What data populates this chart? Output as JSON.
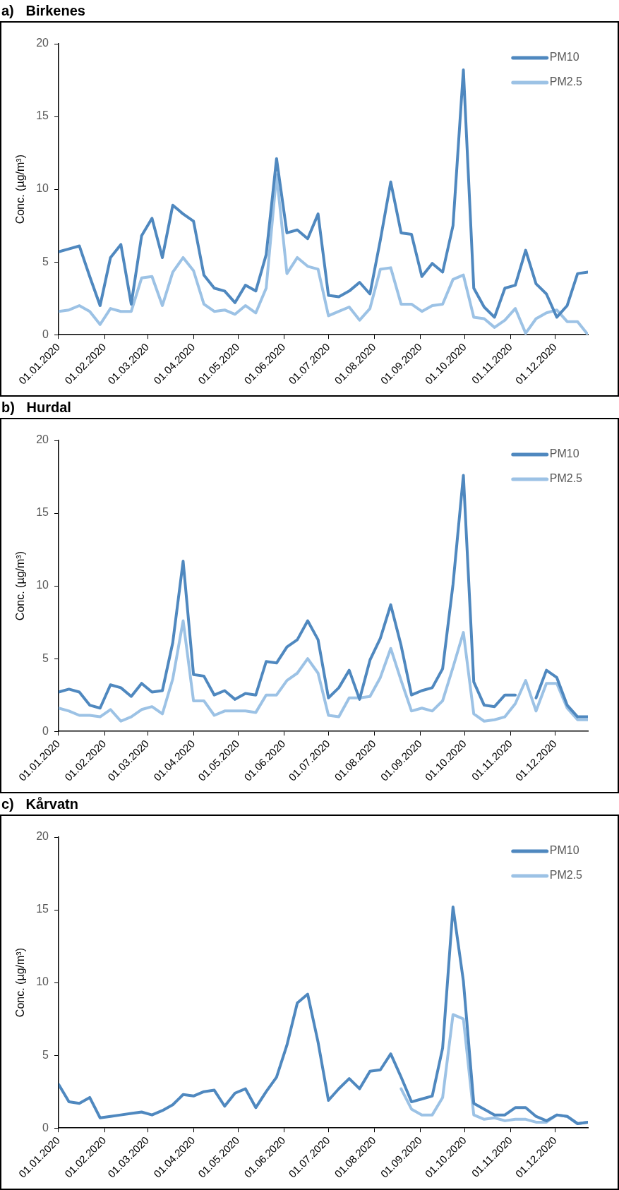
{
  "chart_data": [
    {
      "type": "line",
      "title": "a)   Birkenes",
      "ylabel": "Conc. (µg/m³)",
      "legend": "top right",
      "marker": "none",
      "line_style": "solid",
      "grid": false,
      "x": [
        "2020-01-01",
        "2020-01-08",
        "2020-01-15",
        "2020-01-22",
        "2020-01-29",
        "2020-02-05",
        "2020-02-12",
        "2020-02-19",
        "2020-02-26",
        "2020-03-04",
        "2020-03-11",
        "2020-03-18",
        "2020-03-25",
        "2020-04-01",
        "2020-04-08",
        "2020-04-15",
        "2020-04-22",
        "2020-04-29",
        "2020-05-06",
        "2020-05-13",
        "2020-05-20",
        "2020-05-27",
        "2020-06-03",
        "2020-06-10",
        "2020-06-17",
        "2020-06-24",
        "2020-07-01",
        "2020-07-08",
        "2020-07-15",
        "2020-07-22",
        "2020-07-29",
        "2020-08-05",
        "2020-08-12",
        "2020-08-19",
        "2020-08-26",
        "2020-09-02",
        "2020-09-09",
        "2020-09-16",
        "2020-09-23",
        "2020-09-30",
        "2020-10-07",
        "2020-10-14",
        "2020-10-21",
        "2020-10-28",
        "2020-11-04",
        "2020-11-11",
        "2020-11-18",
        "2020-11-25",
        "2020-12-02",
        "2020-12-09",
        "2020-12-16",
        "2020-12-23"
      ],
      "xlim": [
        "2020-01-01",
        "2020-12-23"
      ],
      "xticks": [
        {
          "value": "2020-01-01",
          "label": "01.01.2020"
        },
        {
          "value": "2020-02-01",
          "label": "01.02.2020"
        },
        {
          "value": "2020-03-01",
          "label": "01.03.2020"
        },
        {
          "value": "2020-04-01",
          "label": "01.04.2020"
        },
        {
          "value": "2020-05-01",
          "label": "01.05.2020"
        },
        {
          "value": "2020-06-01",
          "label": "01.06.2020"
        },
        {
          "value": "2020-07-01",
          "label": "01.07.2020"
        },
        {
          "value": "2020-08-01",
          "label": "01.08.2020"
        },
        {
          "value": "2020-09-01",
          "label": "01.09.2020"
        },
        {
          "value": "2020-10-01",
          "label": "01.10.2020"
        },
        {
          "value": "2020-11-01",
          "label": "01.11.2020"
        },
        {
          "value": "2020-12-01",
          "label": "01.12.2020"
        }
      ],
      "ylim": [
        0,
        20
      ],
      "yticks": [
        0,
        5,
        10,
        15,
        20
      ],
      "series": [
        {
          "name": "PM10",
          "color": "#4f88bf",
          "values": [
            5.7,
            5.9,
            6.1,
            4,
            2.0,
            5.3,
            6.2,
            2.1,
            6.8,
            8.0,
            5.3,
            8.9,
            8.3,
            7.8,
            4.1,
            3.2,
            3.0,
            2.2,
            3.4,
            3.0,
            5.5,
            12.1,
            7.0,
            7.2,
            6.6,
            8.3,
            2.7,
            2.6,
            3.0,
            3.6,
            2.8,
            6.5,
            10.5,
            7.0,
            6.9,
            4.0,
            4.9,
            4.3,
            7.5,
            18.2,
            3.2,
            1.9,
            1.2,
            3.2,
            3.4,
            5.8,
            3.5,
            2.8,
            1.2,
            2.0,
            4.2,
            4.3
          ]
        },
        {
          "name": "PM2.5",
          "color": "#9cc2e5",
          "values": [
            1.6,
            1.7,
            2.0,
            1.6,
            0.7,
            1.8,
            1.6,
            1.6,
            3.9,
            4.0,
            2.0,
            4.3,
            5.3,
            4.4,
            2.1,
            1.6,
            1.7,
            1.4,
            2.0,
            1.5,
            3.2,
            11.0,
            4.2,
            5.3,
            4.7,
            4.5,
            1.3,
            1.6,
            1.9,
            1.0,
            1.8,
            4.5,
            4.6,
            2.1,
            2.1,
            1.6,
            2.0,
            2.1,
            3.8,
            4.1,
            1.2,
            1.1,
            0.5,
            1.0,
            1.8,
            0.1,
            1.1,
            1.5,
            1.7,
            0.9,
            0.9,
            0.0
          ]
        }
      ]
    },
    {
      "type": "line",
      "title": "b)   Hurdal",
      "ylabel": "Conc. (µg/m³)",
      "legend": "top right",
      "marker": "none",
      "line_style": "solid",
      "grid": false,
      "x": [
        "2020-01-01",
        "2020-01-08",
        "2020-01-15",
        "2020-01-22",
        "2020-01-29",
        "2020-02-05",
        "2020-02-12",
        "2020-02-19",
        "2020-02-26",
        "2020-03-04",
        "2020-03-11",
        "2020-03-18",
        "2020-03-25",
        "2020-04-01",
        "2020-04-08",
        "2020-04-15",
        "2020-04-22",
        "2020-04-29",
        "2020-05-06",
        "2020-05-13",
        "2020-05-20",
        "2020-05-27",
        "2020-06-03",
        "2020-06-10",
        "2020-06-17",
        "2020-06-24",
        "2020-07-01",
        "2020-07-08",
        "2020-07-15",
        "2020-07-22",
        "2020-07-29",
        "2020-08-05",
        "2020-08-12",
        "2020-08-19",
        "2020-08-26",
        "2020-09-02",
        "2020-09-09",
        "2020-09-16",
        "2020-09-23",
        "2020-09-30",
        "2020-10-07",
        "2020-10-14",
        "2020-10-21",
        "2020-10-28",
        "2020-11-04",
        "2020-11-11",
        "2020-11-18",
        "2020-11-25",
        "2020-12-02",
        "2020-12-09",
        "2020-12-16",
        "2020-12-23"
      ],
      "xlim": [
        "2020-01-01",
        "2020-12-23"
      ],
      "xticks": [
        {
          "value": "2020-01-01",
          "label": "01.01.2020"
        },
        {
          "value": "2020-02-01",
          "label": "01.02.2020"
        },
        {
          "value": "2020-03-01",
          "label": "01.03.2020"
        },
        {
          "value": "2020-04-01",
          "label": "01.04.2020"
        },
        {
          "value": "2020-05-01",
          "label": "01.05.2020"
        },
        {
          "value": "2020-06-01",
          "label": "01.06.2020"
        },
        {
          "value": "2020-07-01",
          "label": "01.07.2020"
        },
        {
          "value": "2020-08-01",
          "label": "01.08.2020"
        },
        {
          "value": "2020-09-01",
          "label": "01.09.2020"
        },
        {
          "value": "2020-10-01",
          "label": "01.10.2020"
        },
        {
          "value": "2020-11-01",
          "label": "01.11.2020"
        },
        {
          "value": "2020-12-01",
          "label": "01.12.2020"
        }
      ],
      "ylim": [
        0,
        20
      ],
      "yticks": [
        0,
        5,
        10,
        15,
        20
      ],
      "series": [
        {
          "name": "PM10",
          "color": "#4f88bf",
          "values": [
            2.7,
            2.9,
            2.7,
            1.8,
            1.6,
            3.2,
            3.0,
            2.4,
            3.3,
            2.7,
            2.8,
            6.1,
            11.7,
            3.9,
            3.8,
            2.5,
            2.8,
            2.2,
            2.6,
            2.5,
            4.8,
            4.7,
            5.8,
            6.3,
            7.6,
            6.3,
            2.3,
            3.0,
            4.2,
            2.2,
            4.9,
            6.4,
            8.7,
            5.9,
            2.5,
            2.8,
            3.0,
            4.3,
            10.1,
            17.6,
            3.4,
            1.8,
            1.7,
            2.5,
            2.5,
            null,
            2.3,
            4.2,
            3.7,
            1.8,
            1.0,
            1.0
          ]
        },
        {
          "name": "PM2.5",
          "color": "#9cc2e5",
          "values": [
            1.6,
            1.4,
            1.1,
            1.1,
            1.0,
            1.5,
            0.7,
            1.0,
            1.5,
            1.7,
            1.2,
            3.6,
            7.6,
            2.1,
            2.1,
            1.1,
            1.4,
            1.4,
            1.4,
            1.3,
            2.5,
            2.5,
            3.5,
            4.0,
            5.0,
            4.0,
            1.1,
            1.0,
            2.3,
            2.3,
            2.4,
            3.7,
            5.7,
            3.5,
            1.4,
            1.6,
            1.4,
            2.1,
            4.4,
            6.8,
            1.2,
            0.7,
            0.8,
            1.0,
            1.9,
            3.5,
            1.4,
            3.3,
            3.3,
            1.6,
            0.8,
            0.8
          ]
        }
      ]
    },
    {
      "type": "line",
      "title": "c)   Kårvatn",
      "ylabel": "Conc. (µg/m³)",
      "legend": "top right",
      "marker": "none",
      "line_style": "solid",
      "grid": false,
      "x": [
        "2020-01-01",
        "2020-01-08",
        "2020-01-15",
        "2020-01-22",
        "2020-01-29",
        "2020-02-05",
        "2020-02-12",
        "2020-02-19",
        "2020-02-26",
        "2020-03-04",
        "2020-03-11",
        "2020-03-18",
        "2020-03-25",
        "2020-04-01",
        "2020-04-08",
        "2020-04-15",
        "2020-04-22",
        "2020-04-29",
        "2020-05-06",
        "2020-05-13",
        "2020-05-20",
        "2020-05-27",
        "2020-06-03",
        "2020-06-10",
        "2020-06-17",
        "2020-06-24",
        "2020-07-01",
        "2020-07-08",
        "2020-07-15",
        "2020-07-22",
        "2020-07-29",
        "2020-08-05",
        "2020-08-12",
        "2020-08-19",
        "2020-08-26",
        "2020-09-02",
        "2020-09-09",
        "2020-09-16",
        "2020-09-23",
        "2020-09-30",
        "2020-10-07",
        "2020-10-14",
        "2020-10-21",
        "2020-10-28",
        "2020-11-04",
        "2020-11-11",
        "2020-11-18",
        "2020-11-25",
        "2020-12-02",
        "2020-12-09",
        "2020-12-16",
        "2020-12-23"
      ],
      "xlim": [
        "2020-01-01",
        "2020-12-23"
      ],
      "xticks": [
        {
          "value": "2020-01-01",
          "label": "01.01.2020"
        },
        {
          "value": "2020-02-01",
          "label": "01.02.2020"
        },
        {
          "value": "2020-03-01",
          "label": "01.03.2020"
        },
        {
          "value": "2020-04-01",
          "label": "01.04.2020"
        },
        {
          "value": "2020-05-01",
          "label": "01.05.2020"
        },
        {
          "value": "2020-06-01",
          "label": "01.06.2020"
        },
        {
          "value": "2020-07-01",
          "label": "01.07.2020"
        },
        {
          "value": "2020-08-01",
          "label": "01.08.2020"
        },
        {
          "value": "2020-09-01",
          "label": "01.09.2020"
        },
        {
          "value": "2020-10-01",
          "label": "01.10.2020"
        },
        {
          "value": "2020-11-01",
          "label": "01.11.2020"
        },
        {
          "value": "2020-12-01",
          "label": "01.12.2020"
        }
      ],
      "ylim": [
        0,
        20
      ],
      "yticks": [
        0,
        5,
        10,
        15,
        20
      ],
      "series": [
        {
          "name": "PM10",
          "color": "#4f88bf",
          "values": [
            3.0,
            1.8,
            1.7,
            2.1,
            0.7,
            0.8,
            0.9,
            1.0,
            1.1,
            0.9,
            1.2,
            1.6,
            2.3,
            2.2,
            2.5,
            2.6,
            1.5,
            2.4,
            2.7,
            1.4,
            2.5,
            3.5,
            5.7,
            8.6,
            9.2,
            5.9,
            1.9,
            2.7,
            3.4,
            2.7,
            3.9,
            4.0,
            5.1,
            3.5,
            1.8,
            2.0,
            2.2,
            5.5,
            15.2,
            10.1,
            1.7,
            1.3,
            0.9,
            0.9,
            1.4,
            1.4,
            0.8,
            0.5,
            0.9,
            0.8,
            0.3,
            0.4
          ]
        },
        {
          "name": "PM2.5",
          "color": "#9cc2e5",
          "values": [
            null,
            null,
            null,
            null,
            null,
            null,
            null,
            null,
            null,
            null,
            null,
            null,
            null,
            null,
            null,
            null,
            null,
            null,
            null,
            null,
            null,
            null,
            null,
            null,
            null,
            null,
            null,
            null,
            null,
            null,
            null,
            null,
            null,
            2.7,
            1.3,
            0.9,
            0.9,
            2.1,
            7.8,
            7.5,
            0.9,
            0.6,
            0.7,
            0.5,
            0.6,
            0.6,
            0.4,
            0.4,
            0.9,
            0.8,
            0.3,
            0.4
          ]
        }
      ]
    }
  ]
}
